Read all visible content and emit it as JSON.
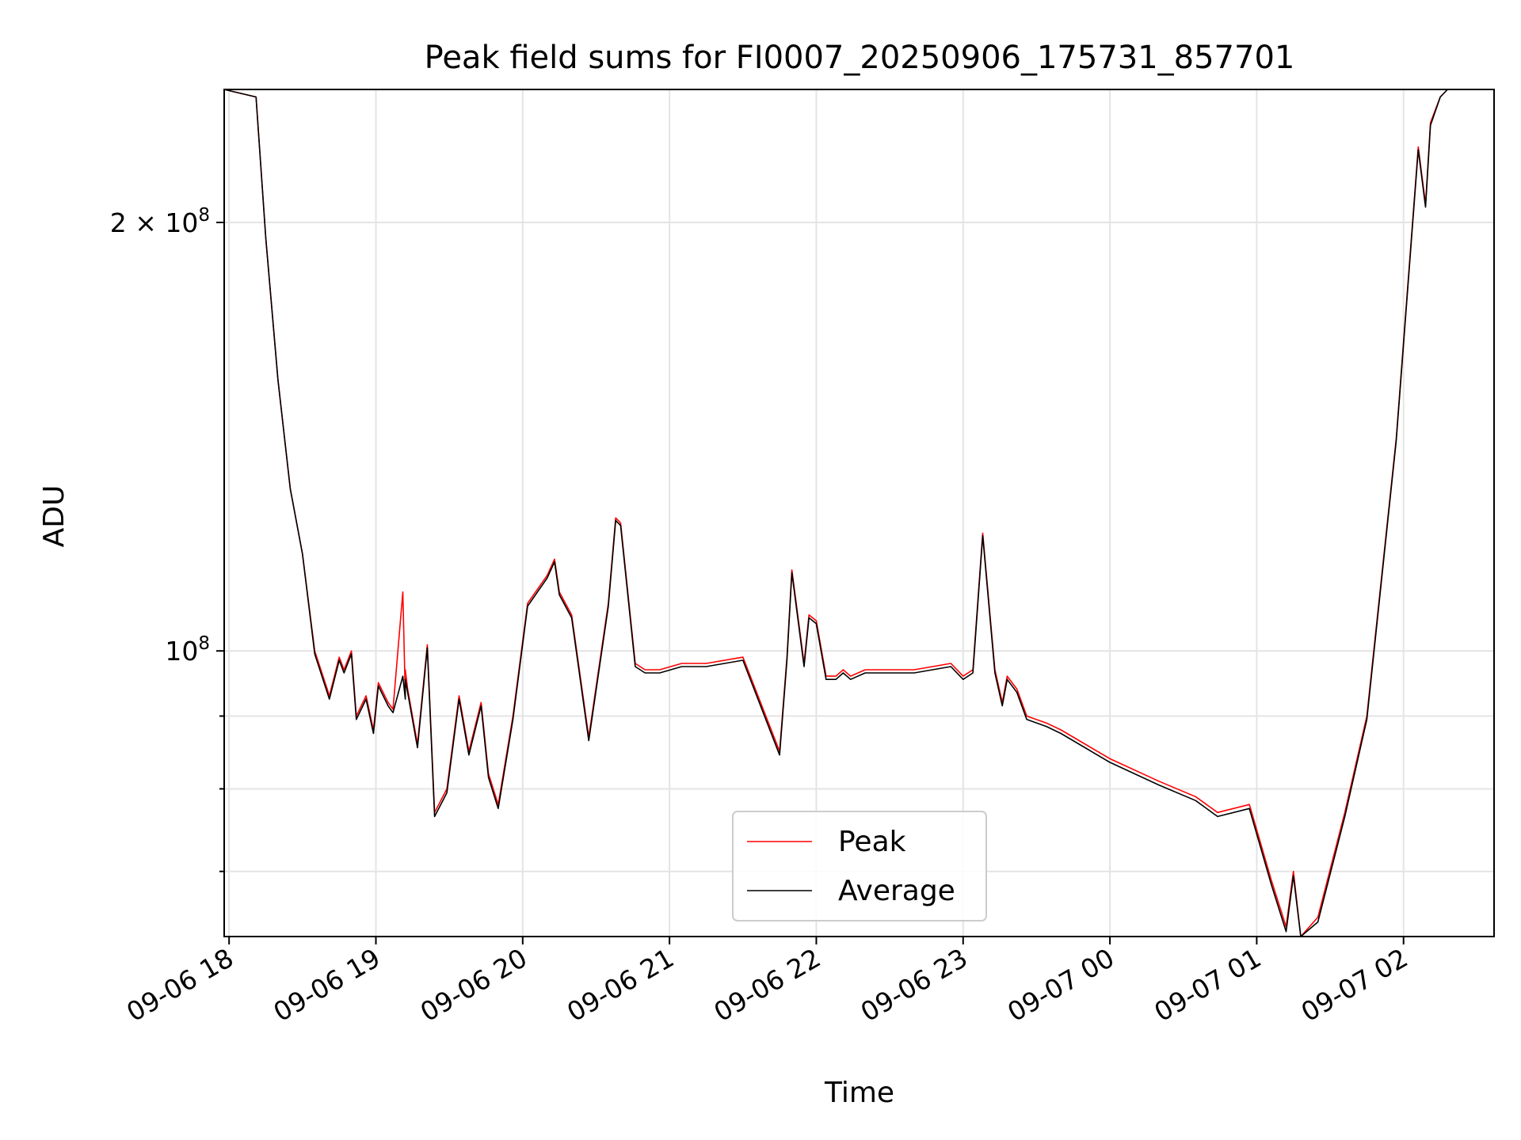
{
  "chart_data": {
    "type": "line",
    "title": "Peak field sums for FI0007_20250906_175731_857701",
    "xlabel": "Time",
    "ylabel": "ADU",
    "y_scale": "log",
    "xlim": [
      "2025-09-06 17:58",
      "2025-09-07 02:37"
    ],
    "ylim": [
      63000000,
      248000000
    ],
    "grid": true,
    "legend_position": "lower center",
    "x_ticks": [
      {
        "value": "2025-09-06 18:00",
        "label": "09-06 18"
      },
      {
        "value": "2025-09-06 19:00",
        "label": "09-06 19"
      },
      {
        "value": "2025-09-06 20:00",
        "label": "09-06 20"
      },
      {
        "value": "2025-09-06 21:00",
        "label": "09-06 21"
      },
      {
        "value": "2025-09-06 22:00",
        "label": "09-06 22"
      },
      {
        "value": "2025-09-06 23:00",
        "label": "09-06 23"
      },
      {
        "value": "2025-09-07 00:00",
        "label": "09-07 00"
      },
      {
        "value": "2025-09-07 01:00",
        "label": "09-07 01"
      },
      {
        "value": "2025-09-07 02:00",
        "label": "09-07 02"
      }
    ],
    "y_ticks_major": [
      {
        "value": 100000000,
        "label": "10^8"
      },
      {
        "value": 200000000,
        "label": "2 × 10^8"
      }
    ],
    "y_ticks_minor": [
      70000000,
      80000000,
      90000000
    ],
    "series": [
      {
        "name": "Peak",
        "color": "#ff0000",
        "x": [
          "2025-09-06 17:58",
          "2025-09-06 18:11",
          "2025-09-06 18:15",
          "2025-09-06 18:20",
          "2025-09-06 18:25",
          "2025-09-06 18:30",
          "2025-09-06 18:35",
          "2025-09-06 18:41",
          "2025-09-06 18:45",
          "2025-09-06 18:47",
          "2025-09-06 18:50",
          "2025-09-06 18:52",
          "2025-09-06 18:56",
          "2025-09-06 18:59",
          "2025-09-06 19:01",
          "2025-09-06 19:05",
          "2025-09-06 19:07",
          "2025-09-06 19:11",
          "2025-09-06 19:12",
          "2025-09-06 19:12",
          "2025-09-06 19:13",
          "2025-09-06 19:17",
          "2025-09-06 19:21",
          "2025-09-06 19:24",
          "2025-09-06 19:29",
          "2025-09-06 19:34",
          "2025-09-06 19:38",
          "2025-09-06 19:43",
          "2025-09-06 19:46",
          "2025-09-06 19:50",
          "2025-09-06 19:56",
          "2025-09-06 20:02",
          "2025-09-06 20:10",
          "2025-09-06 20:13",
          "2025-09-06 20:15",
          "2025-09-06 20:20",
          "2025-09-06 20:27",
          "2025-09-06 20:35",
          "2025-09-06 20:38",
          "2025-09-06 20:40",
          "2025-09-06 20:46",
          "2025-09-06 20:50",
          "2025-09-06 20:56",
          "2025-09-06 21:05",
          "2025-09-06 21:15",
          "2025-09-06 21:30",
          "2025-09-06 21:45",
          "2025-09-06 21:48",
          "2025-09-06 21:50",
          "2025-09-06 21:55",
          "2025-09-06 21:57",
          "2025-09-06 22:00",
          "2025-09-06 22:04",
          "2025-09-06 22:08",
          "2025-09-06 22:11",
          "2025-09-06 22:14",
          "2025-09-06 22:20",
          "2025-09-06 22:28",
          "2025-09-06 22:40",
          "2025-09-06 22:55",
          "2025-09-06 23:00",
          "2025-09-06 23:04",
          "2025-09-06 23:08",
          "2025-09-06 23:13",
          "2025-09-06 23:16",
          "2025-09-06 23:18",
          "2025-09-06 23:22",
          "2025-09-06 23:26",
          "2025-09-06 23:34",
          "2025-09-06 23:40",
          "2025-09-07 00:00",
          "2025-09-07 00:20",
          "2025-09-07 00:35",
          "2025-09-07 00:44",
          "2025-09-07 00:57",
          "2025-09-07 01:06",
          "2025-09-07 01:12",
          "2025-09-07 01:15",
          "2025-09-07 01:18",
          "2025-09-07 01:25",
          "2025-09-07 01:36",
          "2025-09-07 01:45",
          "2025-09-07 01:57",
          "2025-09-07 02:06",
          "2025-09-07 02:09",
          "2025-09-07 02:11",
          "2025-09-07 02:15",
          "2025-09-07 02:18",
          "2025-09-07 02:37"
        ],
        "values": [
          248000000,
          245000000,
          195000000,
          155000000,
          130000000,
          117000000,
          100000000,
          93000000,
          99000000,
          97000000,
          100000000,
          90000000,
          93000000,
          88000000,
          95000000,
          92000000,
          91000000,
          110000000,
          93000000,
          97000000,
          94000000,
          86000000,
          101000000,
          77000000,
          80000000,
          93000000,
          85000000,
          92000000,
          82000000,
          78000000,
          90000000,
          108000000,
          113000000,
          116000000,
          110000000,
          106000000,
          87000000,
          108000000,
          124000000,
          123000000,
          98000000,
          97000000,
          97000000,
          98000000,
          98000000,
          99000000,
          85000000,
          99000000,
          114000000,
          98000000,
          106000000,
          105000000,
          96000000,
          96000000,
          97000000,
          96000000,
          97000000,
          97000000,
          97000000,
          98000000,
          96000000,
          97000000,
          121000000,
          97000000,
          92000000,
          96000000,
          94000000,
          90000000,
          89000000,
          88000000,
          84000000,
          81000000,
          79000000,
          77000000,
          78000000,
          69000000,
          64000000,
          70000000,
          63000000,
          65000000,
          77000000,
          90000000,
          141000000,
          226000000,
          206000000,
          235000000,
          245000000,
          248000000,
          248000000
        ]
      },
      {
        "name": "Average",
        "color": "#000000",
        "x": [
          "2025-09-06 17:58",
          "2025-09-06 18:11",
          "2025-09-06 18:15",
          "2025-09-06 18:20",
          "2025-09-06 18:25",
          "2025-09-06 18:30",
          "2025-09-06 18:35",
          "2025-09-06 18:41",
          "2025-09-06 18:45",
          "2025-09-06 18:47",
          "2025-09-06 18:50",
          "2025-09-06 18:52",
          "2025-09-06 18:56",
          "2025-09-06 18:59",
          "2025-09-06 19:01",
          "2025-09-06 19:05",
          "2025-09-06 19:07",
          "2025-09-06 19:11",
          "2025-09-06 19:12",
          "2025-09-06 19:12",
          "2025-09-06 19:13",
          "2025-09-06 19:17",
          "2025-09-06 19:21",
          "2025-09-06 19:24",
          "2025-09-06 19:29",
          "2025-09-06 19:34",
          "2025-09-06 19:38",
          "2025-09-06 19:43",
          "2025-09-06 19:46",
          "2025-09-06 19:50",
          "2025-09-06 19:56",
          "2025-09-06 20:02",
          "2025-09-06 20:10",
          "2025-09-06 20:13",
          "2025-09-06 20:15",
          "2025-09-06 20:20",
          "2025-09-06 20:27",
          "2025-09-06 20:35",
          "2025-09-06 20:38",
          "2025-09-06 20:40",
          "2025-09-06 20:46",
          "2025-09-06 20:50",
          "2025-09-06 20:56",
          "2025-09-06 21:05",
          "2025-09-06 21:15",
          "2025-09-06 21:30",
          "2025-09-06 21:45",
          "2025-09-06 21:48",
          "2025-09-06 21:50",
          "2025-09-06 21:55",
          "2025-09-06 21:57",
          "2025-09-06 22:00",
          "2025-09-06 22:04",
          "2025-09-06 22:08",
          "2025-09-06 22:11",
          "2025-09-06 22:14",
          "2025-09-06 22:20",
          "2025-09-06 22:28",
          "2025-09-06 22:40",
          "2025-09-06 22:55",
          "2025-09-06 23:00",
          "2025-09-06 23:04",
          "2025-09-06 23:08",
          "2025-09-06 23:13",
          "2025-09-06 23:16",
          "2025-09-06 23:18",
          "2025-09-06 23:22",
          "2025-09-06 23:26",
          "2025-09-06 23:34",
          "2025-09-06 23:40",
          "2025-09-07 00:00",
          "2025-09-07 00:20",
          "2025-09-07 00:35",
          "2025-09-07 00:44",
          "2025-09-07 00:57",
          "2025-09-07 01:06",
          "2025-09-07 01:12",
          "2025-09-07 01:15",
          "2025-09-07 01:18",
          "2025-09-07 01:25",
          "2025-09-07 01:36",
          "2025-09-07 01:45",
          "2025-09-07 01:57",
          "2025-09-07 02:06",
          "2025-09-07 02:09",
          "2025-09-07 02:11",
          "2025-09-07 02:15",
          "2025-09-07 02:18",
          "2025-09-07 02:37"
        ],
        "values": [
          248000000,
          245000000,
          195000000,
          155000000,
          130000000,
          117000000,
          99500000,
          92500000,
          98500000,
          96500000,
          99500000,
          89500000,
          92500000,
          87500000,
          94500000,
          91500000,
          90500000,
          96000000,
          92500000,
          95500000,
          93500000,
          85500000,
          100500000,
          76500000,
          79500000,
          92500000,
          84500000,
          91500000,
          81500000,
          77500000,
          89500000,
          107500000,
          112500000,
          115500000,
          109500000,
          105500000,
          86500000,
          107500000,
          123500000,
          122500000,
          97500000,
          96500000,
          96500000,
          97500000,
          97500000,
          98500000,
          84500000,
          98500000,
          113500000,
          97500000,
          105500000,
          104500000,
          95500000,
          95500000,
          96500000,
          95500000,
          96500000,
          96500000,
          96500000,
          97500000,
          95500000,
          96500000,
          120500000,
          96500000,
          91500000,
          95500000,
          93500000,
          89500000,
          88500000,
          87500000,
          83500000,
          80500000,
          78500000,
          76500000,
          77500000,
          68500000,
          63500000,
          69500000,
          62500000,
          64500000,
          76500000,
          89500000,
          140500000,
          225000000,
          205000000,
          234000000,
          245000000,
          248000000,
          248000000
        ]
      }
    ]
  }
}
